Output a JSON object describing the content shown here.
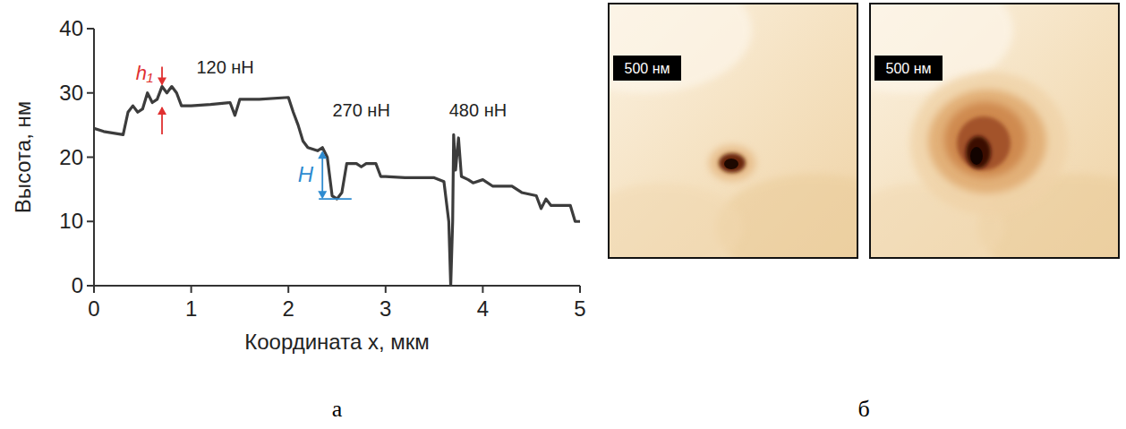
{
  "chart_data": {
    "type": "line",
    "x_label": "Координата x, мкм",
    "y_label": "Высота, нм",
    "x": [
      0,
      0.1,
      0.3,
      0.35,
      0.4,
      0.45,
      0.5,
      0.55,
      0.6,
      0.65,
      0.7,
      0.75,
      0.8,
      0.85,
      0.9,
      1.0,
      1.2,
      1.4,
      1.45,
      1.5,
      1.7,
      2.0,
      2.05,
      2.1,
      2.15,
      2.2,
      2.3,
      2.35,
      2.4,
      2.45,
      2.5,
      2.55,
      2.6,
      2.7,
      2.75,
      2.8,
      2.9,
      2.95,
      3.0,
      3.2,
      3.5,
      3.6,
      3.65,
      3.67,
      3.69,
      3.7,
      3.72,
      3.75,
      3.78,
      3.85,
      3.9,
      4.0,
      4.1,
      4.3,
      4.4,
      4.55,
      4.6,
      4.65,
      4.7,
      4.8,
      4.9,
      4.95,
      5.0
    ],
    "values": [
      24.5,
      24,
      23.5,
      27,
      28,
      27,
      27.5,
      30,
      28.5,
      29,
      31,
      30,
      31,
      30,
      28,
      28,
      28.2,
      28.5,
      26.5,
      29,
      29,
      29.3,
      27,
      25,
      22.5,
      21.5,
      21,
      21.5,
      20,
      14,
      13.5,
      14.5,
      19,
      19,
      18.5,
      19,
      19,
      17,
      17,
      16.8,
      16.8,
      16.2,
      10,
      0,
      10,
      23.5,
      18,
      23,
      17,
      16.5,
      16,
      16.5,
      15.5,
      15.5,
      14.5,
      14,
      12,
      13.5,
      12.5,
      12.5,
      12.5,
      10,
      10
    ],
    "color": "#3c3c3c",
    "xlim": [
      0,
      5
    ],
    "xticks": [
      0,
      1,
      2,
      3,
      4,
      5
    ],
    "ylim": [
      0,
      40
    ],
    "yticks": [
      0,
      10,
      20,
      30,
      40
    ],
    "grid": false,
    "annotations": [
      {
        "text": "120 нН",
        "x": 1.35,
        "y": 33
      },
      {
        "text": "270 нН",
        "x": 2.75,
        "y": 26.3
      },
      {
        "text": "480 нН",
        "x": 3.95,
        "y": 26.3
      },
      {
        "text": "h₁",
        "x": 0.7,
        "y_low": 28,
        "y_high": 31,
        "color": "#e03030"
      },
      {
        "text": "H",
        "x": 2.35,
        "y_low": 13.5,
        "y_high": 21,
        "x_end": 2.65,
        "color": "#2e8bd0"
      }
    ]
  },
  "images": [
    {
      "scale_label": "500 нм"
    },
    {
      "scale_label": "500 нм"
    }
  ],
  "panel_labels": [
    "а",
    "б"
  ]
}
